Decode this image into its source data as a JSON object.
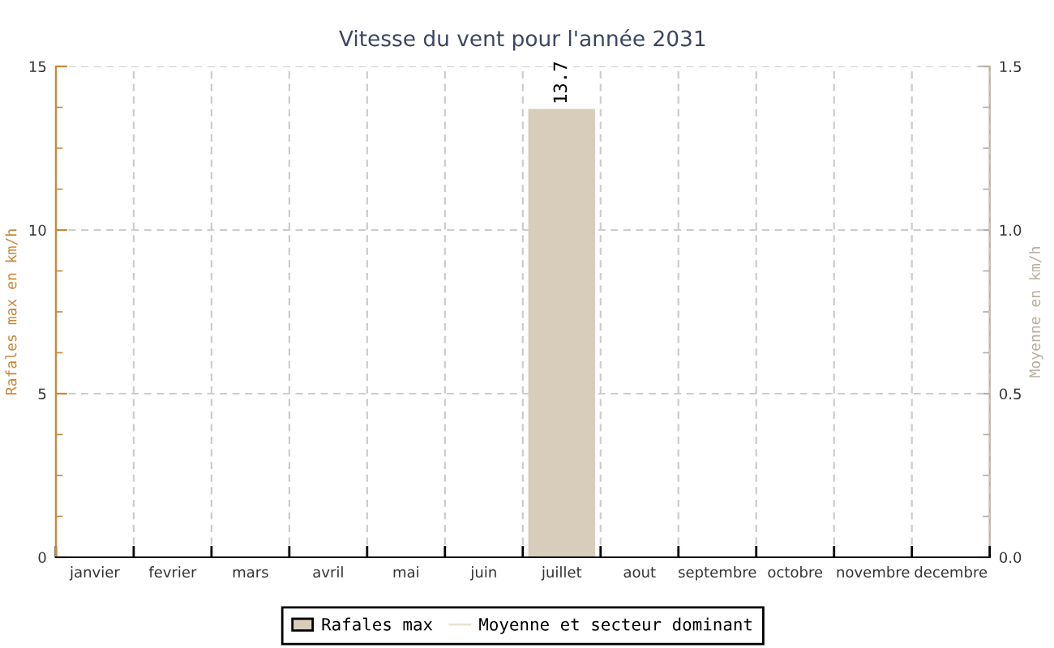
{
  "chart_data": {
    "type": "bar",
    "title": "Vitesse du vent pour l'année 2031",
    "categories": [
      "janvier",
      "fevrier",
      "mars",
      "avril",
      "mai",
      "juin",
      "juillet",
      "aout",
      "septembre",
      "octobre",
      "novembre",
      "decembre"
    ],
    "series": [
      {
        "name": "Rafales max",
        "color": "#d8cdbb",
        "values": [
          null,
          null,
          null,
          null,
          null,
          null,
          13.7,
          null,
          null,
          null,
          null,
          null
        ],
        "value_labels": [
          null,
          null,
          null,
          null,
          null,
          null,
          "13.7",
          null,
          null,
          null,
          null,
          null
        ]
      },
      {
        "name": "Moyenne et secteur dominant",
        "type": "line",
        "axis": "y2",
        "color": "#ebe2d3",
        "values": [
          null,
          null,
          null,
          null,
          null,
          null,
          null,
          null,
          null,
          null,
          null,
          null
        ]
      }
    ],
    "ylabel": "Rafales max en km/h",
    "y2label": "Moyenne en km/h",
    "ylim": [
      0,
      15
    ],
    "yticks": [
      0,
      5,
      10,
      15
    ],
    "y2lim": [
      0,
      1.5
    ],
    "y2ticks": [
      {
        "value": 0,
        "label": "0.0"
      },
      {
        "value": 0.5,
        "label": "0.5"
      },
      {
        "value": 1,
        "label": "1.0"
      },
      {
        "value": 1.5,
        "label": "1.5"
      }
    ],
    "grid": true,
    "legend": "bottom"
  }
}
